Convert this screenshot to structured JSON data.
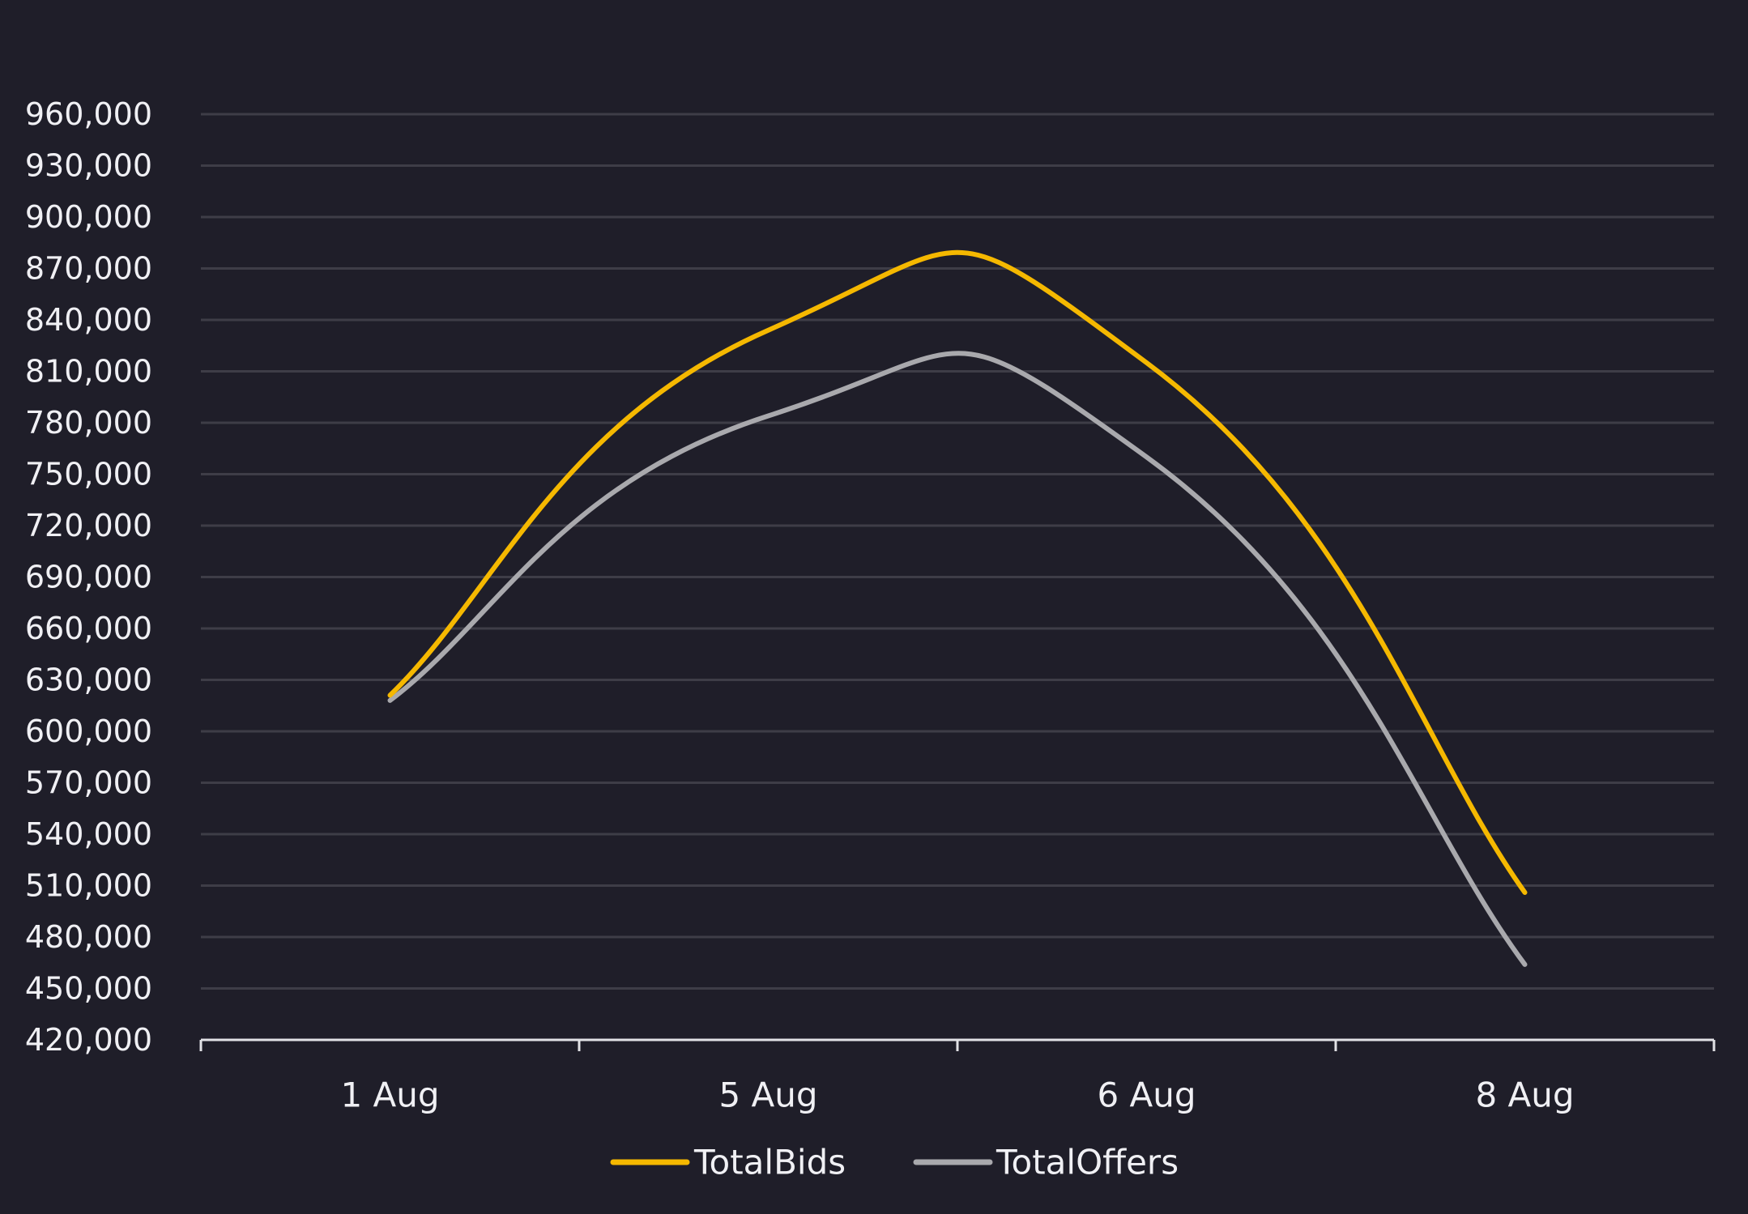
{
  "chart_data": {
    "type": "line",
    "smoothed": true,
    "categories": [
      "1 Aug",
      "5 Aug",
      "6 Aug",
      "8 Aug"
    ],
    "ylim": [
      420000,
      960000
    ],
    "yticks": [
      420000,
      450000,
      480000,
      510000,
      540000,
      570000,
      600000,
      630000,
      660000,
      690000,
      720000,
      750000,
      780000,
      810000,
      840000,
      870000,
      900000,
      930000,
      960000
    ],
    "ytick_labels": [
      "420,000",
      "450,000",
      "480,000",
      "510,000",
      "540,000",
      "570,000",
      "600,000",
      "630,000",
      "660,000",
      "690,000",
      "720,000",
      "750,000",
      "780,000",
      "810,000",
      "840,000",
      "870,000",
      "900,000",
      "930,000",
      "960,000"
    ],
    "grid": true,
    "legend_position": "bottom",
    "series": [
      {
        "name": "TotalBids",
        "color": "#f5b800",
        "values": [
          621000,
          834000,
          815000,
          506000
        ]
      },
      {
        "name": "TotalOffers",
        "color": "#a9a9ad",
        "values": [
          618000,
          784000,
          760000,
          464000
        ]
      }
    ],
    "title": "",
    "xlabel": "",
    "ylabel": ""
  }
}
